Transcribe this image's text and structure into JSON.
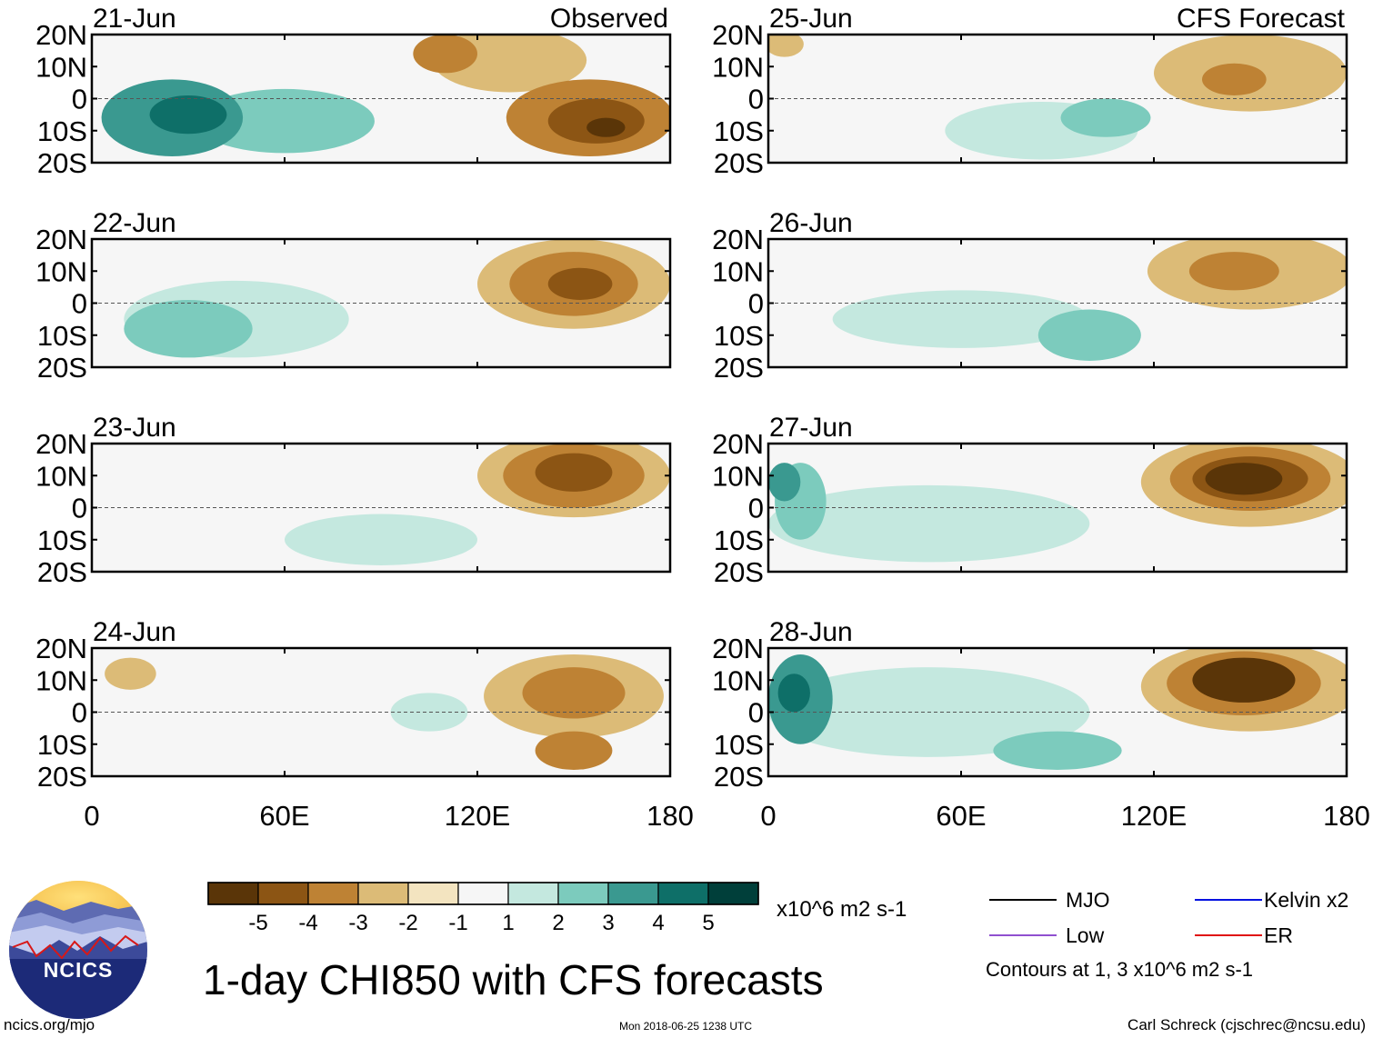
{
  "chart_data": {
    "type": "heatmap",
    "title": "1-day CHI850 with CFS forecasts",
    "units": "x10^6 m2 s-1",
    "lat_ticks": [
      "20N",
      "10N",
      "0",
      "10S",
      "20S"
    ],
    "lat_values": [
      20,
      10,
      0,
      -10,
      -20
    ],
    "lon_ticks": [
      "0",
      "60E",
      "120E",
      "180"
    ],
    "lon_values": [
      0,
      60,
      120,
      180
    ],
    "lon_range": [
      0,
      180
    ],
    "lat_range": [
      -20,
      20
    ],
    "contours_note": "Contours at 1, 3 x10^6 m2 s-1",
    "colorbar": {
      "levels": [
        "-5",
        "-4",
        "-3",
        "-2",
        "-1",
        "1",
        "2",
        "3",
        "4",
        "5"
      ],
      "colors": [
        "#5a3508",
        "#8c5514",
        "#be8234",
        "#dcbb77",
        "#f3e4c0",
        "#f6f6f6",
        "#c4e8df",
        "#7ccbbd",
        "#3a9990",
        "#0e6f68",
        "#003f3a"
      ]
    },
    "legend": [
      {
        "name": "MJO",
        "color": "#000000"
      },
      {
        "name": "Kelvin x2",
        "color": "#0010e0"
      },
      {
        "name": "Low",
        "color": "#9050d0"
      },
      {
        "name": "ER",
        "color": "#e01010"
      }
    ],
    "panels": [
      {
        "date": "21-Jun",
        "tag": "Observed",
        "blobs": [
          {
            "lon": 60,
            "lat": -7,
            "rx": 28,
            "ry": 10,
            "v": 2
          },
          {
            "lon": 25,
            "lat": -6,
            "rx": 22,
            "ry": 12,
            "v": 3
          },
          {
            "lon": 30,
            "lat": -5,
            "rx": 12,
            "ry": 6,
            "v": 4
          },
          {
            "lon": 130,
            "lat": 12,
            "rx": 24,
            "ry": 10,
            "v": -2
          },
          {
            "lon": 110,
            "lat": 14,
            "rx": 10,
            "ry": 6,
            "v": -3
          },
          {
            "lon": 155,
            "lat": -6,
            "rx": 26,
            "ry": 12,
            "v": -3
          },
          {
            "lon": 157,
            "lat": -7,
            "rx": 15,
            "ry": 7,
            "v": -4
          },
          {
            "lon": 160,
            "lat": -9,
            "rx": 6,
            "ry": 3,
            "v": -5
          }
        ]
      },
      {
        "date": "22-Jun",
        "tag": "",
        "blobs": [
          {
            "lon": 45,
            "lat": -5,
            "rx": 35,
            "ry": 12,
            "v": 1
          },
          {
            "lon": 30,
            "lat": -8,
            "rx": 20,
            "ry": 9,
            "v": 2
          },
          {
            "lon": 150,
            "lat": 6,
            "rx": 30,
            "ry": 14,
            "v": -2
          },
          {
            "lon": 150,
            "lat": 6,
            "rx": 20,
            "ry": 10,
            "v": -3
          },
          {
            "lon": 152,
            "lat": 6,
            "rx": 10,
            "ry": 5,
            "v": -4
          }
        ]
      },
      {
        "date": "23-Jun",
        "tag": "",
        "blobs": [
          {
            "lon": 90,
            "lat": -10,
            "rx": 30,
            "ry": 8,
            "v": 1
          },
          {
            "lon": 150,
            "lat": 10,
            "rx": 30,
            "ry": 13,
            "v": -2
          },
          {
            "lon": 150,
            "lat": 10,
            "rx": 22,
            "ry": 10,
            "v": -3
          },
          {
            "lon": 150,
            "lat": 11,
            "rx": 12,
            "ry": 6,
            "v": -4
          }
        ]
      },
      {
        "date": "24-Jun",
        "tag": "",
        "blobs": [
          {
            "lon": 105,
            "lat": 0,
            "rx": 12,
            "ry": 6,
            "v": 1
          },
          {
            "lon": 12,
            "lat": 12,
            "rx": 8,
            "ry": 5,
            "v": -2
          },
          {
            "lon": 150,
            "lat": 5,
            "rx": 28,
            "ry": 13,
            "v": -2
          },
          {
            "lon": 150,
            "lat": 6,
            "rx": 16,
            "ry": 8,
            "v": -3
          },
          {
            "lon": 150,
            "lat": -12,
            "rx": 12,
            "ry": 6,
            "v": -3
          }
        ]
      },
      {
        "date": "25-Jun",
        "tag": "CFS Forecast",
        "blobs": [
          {
            "lon": 85,
            "lat": -10,
            "rx": 30,
            "ry": 9,
            "v": 1
          },
          {
            "lon": 105,
            "lat": -6,
            "rx": 14,
            "ry": 6,
            "v": 2
          },
          {
            "lon": 150,
            "lat": 8,
            "rx": 30,
            "ry": 12,
            "v": -2
          },
          {
            "lon": 145,
            "lat": 6,
            "rx": 10,
            "ry": 5,
            "v": -3
          },
          {
            "lon": 5,
            "lat": 17,
            "rx": 6,
            "ry": 4,
            "v": -2
          }
        ]
      },
      {
        "date": "26-Jun",
        "tag": "",
        "blobs": [
          {
            "lon": 60,
            "lat": -5,
            "rx": 40,
            "ry": 9,
            "v": 1
          },
          {
            "lon": 100,
            "lat": -10,
            "rx": 16,
            "ry": 8,
            "v": 2
          },
          {
            "lon": 150,
            "lat": 10,
            "rx": 32,
            "ry": 12,
            "v": -2
          },
          {
            "lon": 145,
            "lat": 10,
            "rx": 14,
            "ry": 6,
            "v": -3
          }
        ]
      },
      {
        "date": "27-Jun",
        "tag": "",
        "blobs": [
          {
            "lon": 50,
            "lat": -5,
            "rx": 50,
            "ry": 12,
            "v": 1
          },
          {
            "lon": 10,
            "lat": 2,
            "rx": 8,
            "ry": 12,
            "v": 2
          },
          {
            "lon": 5,
            "lat": 8,
            "rx": 5,
            "ry": 6,
            "v": 3
          },
          {
            "lon": 150,
            "lat": 8,
            "rx": 34,
            "ry": 14,
            "v": -2
          },
          {
            "lon": 150,
            "lat": 9,
            "rx": 25,
            "ry": 10,
            "v": -3
          },
          {
            "lon": 150,
            "lat": 9,
            "rx": 18,
            "ry": 7,
            "v": -4
          },
          {
            "lon": 148,
            "lat": 9,
            "rx": 12,
            "ry": 5,
            "v": -5
          }
        ]
      },
      {
        "date": "28-Jun",
        "tag": "",
        "blobs": [
          {
            "lon": 50,
            "lat": 0,
            "rx": 50,
            "ry": 14,
            "v": 1
          },
          {
            "lon": 10,
            "lat": 4,
            "rx": 10,
            "ry": 14,
            "v": 3
          },
          {
            "lon": 8,
            "lat": 6,
            "rx": 5,
            "ry": 6,
            "v": 4
          },
          {
            "lon": 90,
            "lat": -12,
            "rx": 20,
            "ry": 6,
            "v": 2
          },
          {
            "lon": 150,
            "lat": 8,
            "rx": 34,
            "ry": 14,
            "v": -2
          },
          {
            "lon": 148,
            "lat": 9,
            "rx": 24,
            "ry": 10,
            "v": -3
          },
          {
            "lon": 148,
            "lat": 10,
            "rx": 16,
            "ry": 7,
            "v": -5
          }
        ]
      }
    ]
  },
  "logo": {
    "text": "NCICS"
  },
  "footer": {
    "site": "ncics.org/mjo",
    "timestamp": "Mon 2018-06-25 1238 UTC",
    "author": "Carl Schreck (cjschrec@ncsu.edu)"
  }
}
